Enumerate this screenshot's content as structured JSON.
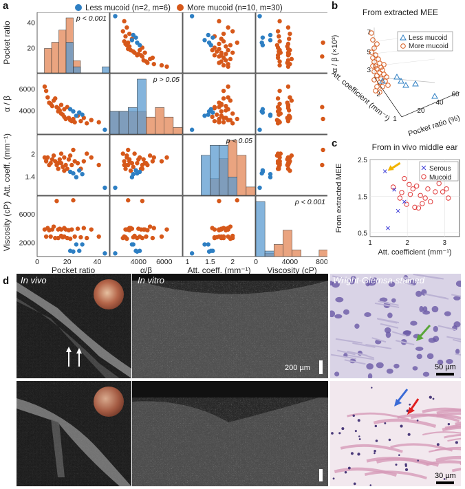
{
  "panel_labels": {
    "a": "a",
    "b": "b",
    "c": "c",
    "d": "d"
  },
  "panel_a": {
    "legend": [
      {
        "label": "Less mucoid (n=2, m=6)",
        "color": "#2e7fc3"
      },
      {
        "label": "More mucoid (n=10, m=30)",
        "color": "#d6581a"
      }
    ],
    "var_labels": [
      "Pocket ratio",
      "α/β",
      "Att. coeff. (mm⁻¹)",
      "Viscosity (cP)"
    ],
    "row_labels": [
      "Pocket ratio",
      "α / β",
      "Att. coeff. (mm⁻¹)",
      "Viscosity (cP)"
    ],
    "p_values": [
      "p < 0.001",
      "p > 0.05",
      "p < 0.05",
      "p < 0.001"
    ]
  },
  "chart_data": [
    {
      "type": "scatter",
      "title": "",
      "panel": "a",
      "matrix_variables": [
        "Pocket ratio",
        "α/β",
        "Att. coeff.",
        "Viscosity"
      ],
      "ranges": [
        [
          0,
          48
        ],
        [
          1800,
          7400
        ],
        [
          0.9,
          2.5
        ],
        [
          0,
          8500
        ]
      ],
      "ticks": [
        [
          0,
          20,
          40
        ],
        [
          4000,
          6000
        ],
        [
          1,
          1.5,
          2
        ],
        [
          0,
          4000,
          8000
        ]
      ],
      "row_ticks": [
        [
          20,
          40
        ],
        [
          4000,
          6000
        ],
        [
          1.4,
          2
        ],
        [
          2000,
          6000
        ]
      ],
      "series": [
        {
          "name": "Less mucoid",
          "color": "#2e7fc3",
          "points": [
            [
              22,
              4100,
              1.52,
              800
            ],
            [
              24,
              3900,
              1.48,
              700
            ],
            [
              26,
              3500,
              1.38,
              1700
            ],
            [
              28,
              3800,
              1.56,
              800
            ],
            [
              30,
              3600,
              1.46,
              1700
            ],
            [
              45,
              2200,
              1.1,
              450
            ]
          ]
        },
        {
          "name": "More mucoid",
          "color": "#d6581a",
          "points": [
            [
              5,
              6200,
              1.9,
              3800
            ],
            [
              6,
              5800,
              1.8,
              2800
            ],
            [
              7,
              5200,
              1.9,
              4000
            ],
            [
              8,
              4700,
              1.7,
              3700
            ],
            [
              9,
              4600,
              1.75,
              2800
            ],
            [
              10,
              4400,
              1.85,
              3800
            ],
            [
              11,
              4900,
              1.95,
              4200
            ],
            [
              12,
              5100,
              1.8,
              2600
            ],
            [
              13,
              4300,
              1.7,
              7800
            ],
            [
              14,
              4200,
              1.6,
              3800
            ],
            [
              14,
              3900,
              1.75,
              2600
            ],
            [
              15,
              4000,
              1.85,
              3900
            ],
            [
              16,
              3700,
              2.0,
              2900
            ],
            [
              16,
              4500,
              1.75,
              3800
            ],
            [
              17,
              3600,
              1.65,
              2700
            ],
            [
              18,
              3400,
              1.55,
              4000
            ],
            [
              18,
              4100,
              1.9,
              2800
            ],
            [
              19,
              3200,
              1.7,
              3800
            ],
            [
              20,
              4300,
              1.6,
              2600
            ],
            [
              21,
              3300,
              1.85,
              3700
            ],
            [
              22,
              3100,
              1.95,
              2500
            ],
            [
              23,
              3000,
              1.7,
              3800
            ],
            [
              24,
              3200,
              2.1,
              7900
            ],
            [
              25,
              2900,
              1.8,
              2800
            ],
            [
              27,
              3500,
              1.75,
              3900
            ],
            [
              29,
              3000,
              1.6,
              2700
            ],
            [
              31,
              3300,
              1.8,
              4000
            ],
            [
              33,
              2800,
              2.0,
              2600
            ],
            [
              36,
              3100,
              1.9,
              3800
            ],
            [
              41,
              2900,
              1.7,
              2800
            ]
          ]
        }
      ],
      "histograms": [
        {
          "less": [
            0,
            0,
            0,
            0,
            5,
            1,
            0,
            0,
            0,
            1
          ],
          "more": [
            0,
            4,
            5,
            7,
            9,
            2,
            0,
            0,
            0,
            0
          ]
        },
        {
          "less": [
            1.2,
            1.2,
            1.4,
            2.9,
            0,
            0,
            0,
            0
          ],
          "more": [
            1.2,
            1.2,
            1.2,
            1.2,
            0.9,
            1.4,
            0.9,
            0.35
          ]
        },
        {
          "less": [
            0,
            0,
            2.4,
            3,
            3,
            1.1,
            0,
            0
          ],
          "more": [
            0,
            0,
            0,
            1,
            2.2,
            3.3,
            2.4,
            0.5
          ]
        },
        {
          "less": [
            5,
            0.5,
            0,
            0,
            0,
            0,
            0,
            0
          ],
          "more": [
            0,
            0.3,
            1.1,
            2.4,
            0.6,
            0,
            0,
            0.6
          ]
        }
      ]
    },
    {
      "type": "scatter",
      "panel": "b",
      "title": "From extracted MEE",
      "xlabel": "Pocket ratio (%)",
      "ylabel": "Att. coefficient (mm⁻¹)",
      "zlabel": "α / β (×10³)",
      "x_ticks": [
        20,
        40,
        60
      ],
      "y_ticks": [
        1,
        2
      ],
      "z_ticks": [
        3,
        5,
        7
      ],
      "series": [
        {
          "name": "Less mucoid",
          "marker": "triangle",
          "color": "#2e7fc3"
        },
        {
          "name": "More mucoid",
          "marker": "circle",
          "color": "#d6581a"
        }
      ]
    },
    {
      "type": "scatter",
      "panel": "c",
      "title": "From in vivo middle ear",
      "xlabel": "Att. coefficient (mm⁻¹)",
      "ylabel": "From extracted MEE",
      "xlim": [
        1,
        3.4
      ],
      "ylim": [
        0.4,
        2.5
      ],
      "x_ticks": [
        1,
        2,
        3
      ],
      "y_ticks": [
        0.5,
        1.5,
        2.5
      ],
      "series": [
        {
          "name": "Serous",
          "marker": "x",
          "color": "#3a3ad6",
          "points": [
            [
              1.4,
              2.18
            ],
            [
              1.65,
              1.68
            ],
            [
              1.75,
              1.1
            ],
            [
              1.92,
              1.35
            ],
            [
              1.48,
              0.63
            ]
          ]
        },
        {
          "name": "Mucoid",
          "marker": "circle",
          "color": "#e03a3a",
          "points": [
            [
              1.62,
              1.75
            ],
            [
              1.8,
              1.45
            ],
            [
              1.92,
              1.98
            ],
            [
              1.98,
              1.28
            ],
            [
              2.08,
              1.55
            ],
            [
              2.15,
              1.7
            ],
            [
              2.2,
              1.2
            ],
            [
              2.25,
              1.78
            ],
            [
              2.3,
              1.18
            ],
            [
              2.35,
              1.52
            ],
            [
              2.48,
              1.45
            ],
            [
              2.55,
              1.7
            ],
            [
              2.62,
              1.35
            ],
            [
              2.75,
              1.62
            ],
            [
              2.85,
              1.85
            ],
            [
              2.95,
              1.62
            ],
            [
              3.05,
              1.7
            ],
            [
              3.1,
              1.45
            ],
            [
              1.85,
              1.6
            ],
            [
              2.05,
              1.82
            ],
            [
              2.4,
              1.3
            ]
          ]
        }
      ]
    }
  ],
  "panel_d": {
    "captions": [
      "In vivo",
      "In vitro",
      "Wright-Giemsa-stained"
    ],
    "scale_labels": [
      "200 µm",
      "50 µm",
      "30 µm"
    ]
  }
}
